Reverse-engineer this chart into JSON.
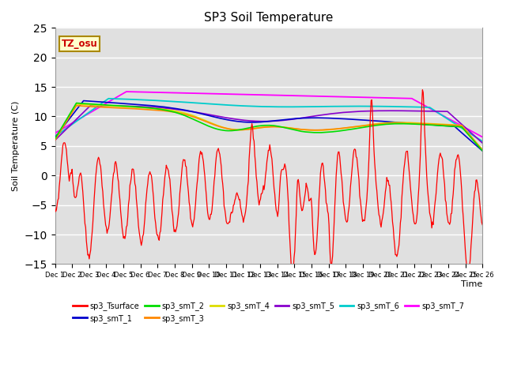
{
  "title": "SP3 Soil Temperature",
  "ylabel": "Soil Temperature (C)",
  "xlabel": "Time",
  "ylim": [
    -15,
    25
  ],
  "yticks": [
    -15,
    -10,
    -5,
    0,
    5,
    10,
    15,
    20,
    25
  ],
  "bg_color": "#e0e0e0",
  "legend_entries": [
    "sp3_Tsurface",
    "sp3_smT_1",
    "sp3_smT_2",
    "sp3_smT_3",
    "sp3_smT_4",
    "sp3_smT_5",
    "sp3_smT_6",
    "sp3_smT_7"
  ],
  "legend_colors": [
    "#ff0000",
    "#0000cc",
    "#00dd00",
    "#ff8800",
    "#dddd00",
    "#8800cc",
    "#00cccc",
    "#ff00ff"
  ],
  "tz_label": "TZ_osu",
  "tz_bg": "#ffffcc",
  "tz_border": "#aa8800"
}
